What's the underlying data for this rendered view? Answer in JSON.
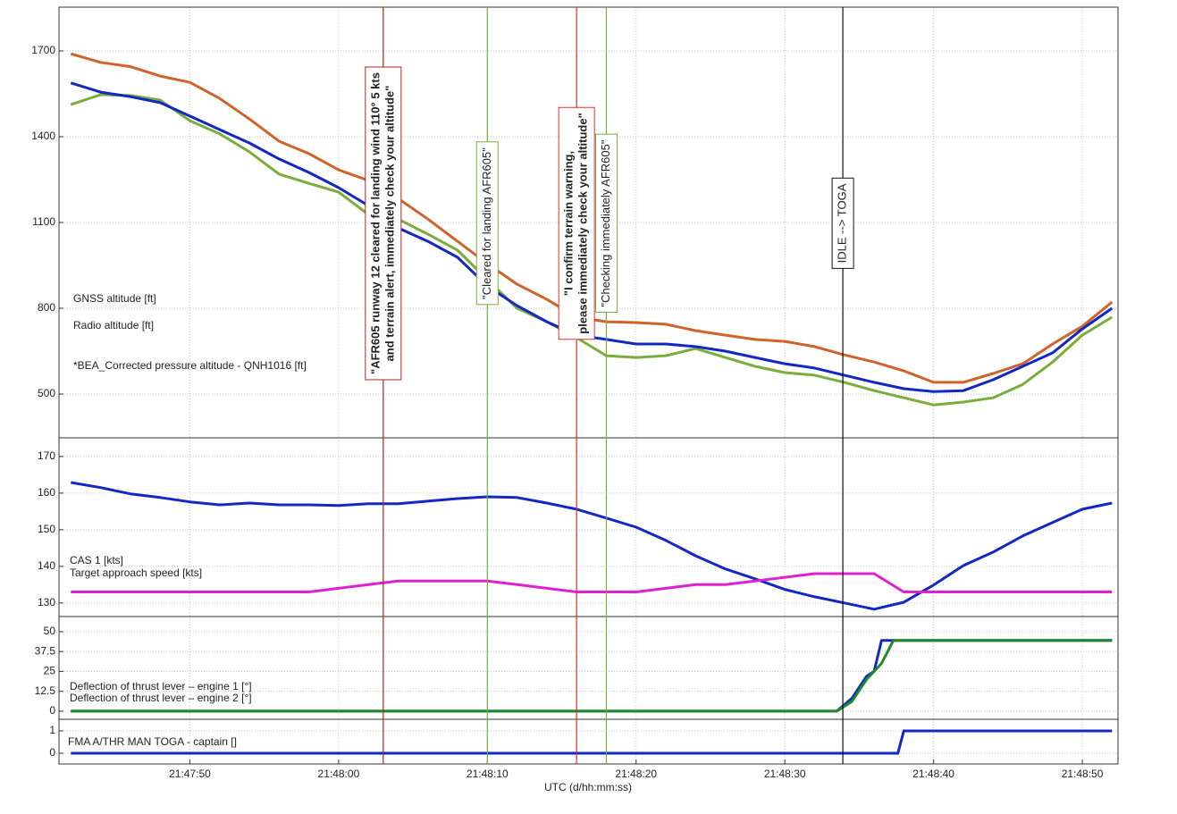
{
  "chart_data": [
    {
      "type": "line",
      "x": [
        42,
        44,
        46,
        48,
        50,
        52,
        54,
        56,
        58,
        60,
        62,
        64,
        66,
        68,
        70,
        72,
        74,
        76,
        78,
        80,
        82,
        84,
        86,
        88,
        90,
        92,
        94,
        96,
        98,
        100,
        102,
        104,
        106,
        108,
        110,
        112
      ],
      "xlim": [
        41.2,
        112.4
      ],
      "ylim": [
        347,
        1853
      ],
      "yticks": [
        500,
        800,
        1100,
        1400,
        1700
      ],
      "grid": true,
      "series": [
        {
          "name": "GNSS altitude [ft]",
          "color": "#d0622a",
          "values": [
            1690,
            1660,
            1645,
            1612,
            1590,
            1534,
            1462,
            1384,
            1341,
            1284,
            1247,
            1184,
            1112,
            1034,
            956,
            884,
            831,
            769,
            753,
            750,
            744,
            722,
            706,
            691,
            684,
            666,
            637,
            612,
            581,
            541,
            541,
            572,
            606,
            675,
            737,
            822
          ]
        },
        {
          "name": "Radio altitude [ft]",
          "color": "#7aad3c",
          "values": [
            1512,
            1547,
            1544,
            1528,
            1456,
            1410,
            1347,
            1269,
            1237,
            1206,
            1128,
            1112,
            1059,
            1003,
            900,
            800,
            753,
            697,
            634,
            628,
            634,
            659,
            628,
            597,
            575,
            566,
            541,
            512,
            487,
            462,
            472,
            487,
            534,
            612,
            706,
            769
          ]
        },
        {
          "name": "*BEA_Corrected pressure altitude - QNH1016 [ft]",
          "color": "#1228c4",
          "values": [
            1588,
            1556,
            1540,
            1519,
            1472,
            1425,
            1378,
            1322,
            1275,
            1222,
            1159,
            1081,
            1034,
            978,
            878,
            809,
            753,
            706,
            691,
            675,
            675,
            666,
            650,
            628,
            606,
            591,
            566,
            541,
            519,
            509,
            512,
            550,
            597,
            644,
            728,
            800
          ]
        }
      ],
      "annotations": [
        {
          "x": 63,
          "color": "#b22222",
          "lines": [
            "\"AFR605 runway 12 cleared for landing wind 110° 5 kts",
            "and terrain alert, immediately check your altitude\""
          ]
        },
        {
          "x": 70,
          "color": "#7aad3c",
          "lines": [
            "\"Cleared for landing AFR605\""
          ]
        },
        {
          "x": 76,
          "color": "#e03030",
          "lines": [
            "\"I confirm terrain warning,",
            "please immediately check your altitude\""
          ]
        },
        {
          "x": 78,
          "color": "#7aad3c",
          "lines": [
            "\"Checking immediately AFR605\""
          ]
        },
        {
          "x": 93.9,
          "color": "#111111",
          "lines": [
            "IDLE --> TOGA"
          ]
        }
      ]
    },
    {
      "type": "line",
      "x": [
        42,
        44,
        46,
        48,
        50,
        52,
        54,
        56,
        58,
        60,
        62,
        64,
        66,
        68,
        70,
        72,
        74,
        76,
        78,
        80,
        82,
        84,
        86,
        88,
        90,
        92,
        94,
        96,
        98,
        100,
        102,
        104,
        106,
        108,
        110,
        112
      ],
      "xlim": [
        41.2,
        112.4
      ],
      "ylim": [
        126.3,
        175.1
      ],
      "yticks": [
        130,
        140,
        150,
        160,
        170
      ],
      "grid": true,
      "series": [
        {
          "name": "CAS 1 [kts]",
          "color": "#1228c4",
          "values": [
            162.9,
            161.5,
            159.8,
            158.8,
            157.6,
            156.8,
            157.3,
            156.8,
            156.8,
            156.6,
            157.1,
            157.1,
            157.8,
            158.5,
            159.0,
            158.8,
            157.3,
            155.6,
            153.2,
            150.7,
            147.1,
            142.9,
            139.3,
            136.6,
            133.7,
            131.7,
            130.0,
            128.3,
            130.2,
            134.9,
            140.2,
            143.9,
            148.3,
            152.0,
            155.6,
            157.3
          ]
        },
        {
          "name": "Target approach speed [kts]",
          "color": "#e020d0",
          "values": [
            133,
            133,
            133,
            133,
            133,
            133,
            133,
            133,
            133,
            134,
            135,
            136,
            136,
            136,
            136,
            135,
            134,
            133,
            133,
            133,
            134,
            135,
            135,
            136,
            137,
            138,
            138,
            138,
            133,
            133,
            133,
            133,
            133,
            133,
            133,
            133
          ]
        }
      ]
    },
    {
      "type": "line",
      "x": [
        42,
        93.5,
        94.5,
        95.5,
        96,
        96.5,
        97.3,
        112
      ],
      "xlim": [
        41.2,
        112.4
      ],
      "ylim": [
        -5.1,
        59.5
      ],
      "yticks": [
        0,
        12.5,
        25,
        37.5,
        50
      ],
      "grid": true,
      "series": [
        {
          "name": "Deflection of thrust lever – engine 1 [°]",
          "color": "#1228c4",
          "values": [
            0,
            0,
            8,
            22,
            25,
            44.5,
            44.5,
            44.5
          ]
        },
        {
          "name": "Deflection of thrust lever – engine 2 [°]",
          "color": "#1f8a2a",
          "values": [
            0,
            0,
            6,
            20,
            25,
            30,
            44.5,
            44.5
          ]
        }
      ]
    },
    {
      "type": "line",
      "x": [
        42,
        97.6,
        98,
        112
      ],
      "xlim": [
        41.2,
        112.4
      ],
      "ylim": [
        -0.48,
        1.52
      ],
      "yticks": [
        0,
        1
      ],
      "grid": true,
      "xlabel": "UTC (d/hh:mm:ss)",
      "xticks": [
        {
          "value": 50,
          "label": "21:47:50"
        },
        {
          "value": 60,
          "label": "21:48:00"
        },
        {
          "value": 70,
          "label": "21:48:10"
        },
        {
          "value": 80,
          "label": "21:48:20"
        },
        {
          "value": 90,
          "label": "21:48:30"
        },
        {
          "value": 100,
          "label": "21:48:40"
        },
        {
          "value": 110,
          "label": "21:48:50"
        }
      ],
      "series": [
        {
          "name": "FMA A/THR MAN TOGA - captain []",
          "color": "#1228c4",
          "values": [
            0,
            0,
            1,
            1
          ]
        }
      ]
    }
  ]
}
